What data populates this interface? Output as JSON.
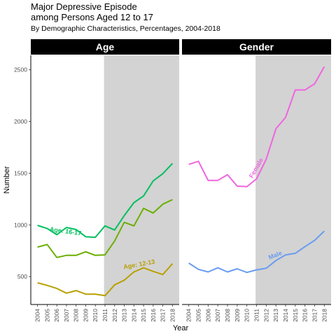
{
  "title_line1": "Major Depressive Episode",
  "title_line2": "among Persons Aged 12 to 17",
  "subtitle": "By Demographic Characteristics, Percentages, 2004-2018",
  "chart_data": {
    "type": "line",
    "x": [
      2004,
      2005,
      2006,
      2007,
      2008,
      2009,
      2010,
      2011,
      2012,
      2013,
      2014,
      2015,
      2016,
      2017,
      2018
    ],
    "xlabel": "Year",
    "ylabel": "Number",
    "ylim": [
      230,
      2640
    ],
    "yticks": [
      500,
      1000,
      1500,
      2000,
      2500
    ],
    "shaded_region": [
      2011,
      2018
    ],
    "grid": false,
    "legend": "none",
    "panels": [
      {
        "facet_label": "Age",
        "series": [
          {
            "name": "Age: 16-17",
            "color": "#00bf5f",
            "label_text": "Age: 16-17",
            "values": [
              995,
              965,
              905,
              975,
              955,
              885,
              880,
              990,
              950,
              1090,
              1215,
              1280,
              1425,
              1495,
              1595
            ]
          },
          {
            "name": "",
            "color": "#6aaf00",
            "label_text": "",
            "values": [
              785,
              810,
              685,
              705,
              705,
              740,
              705,
              710,
              845,
              1025,
              990,
              1160,
              1115,
              1200,
              1245
            ]
          },
          {
            "name": "Age: 12-13",
            "color": "#b8a000",
            "label_text": "Age: 12-13",
            "values": [
              440,
              415,
              385,
              340,
              365,
              330,
              330,
              315,
              420,
              465,
              545,
              585,
              550,
              520,
              625
            ]
          }
        ]
      },
      {
        "facet_label": "Gender",
        "series": [
          {
            "name": "Female",
            "color": "#f065e0",
            "label_text": "Female",
            "values": [
              1585,
              1615,
              1430,
              1430,
              1485,
              1375,
              1370,
              1445,
              1635,
              1930,
              2040,
              2305,
              2305,
              2365,
              2530
            ]
          },
          {
            "name": "Male",
            "color": "#6a9cf0",
            "label_text": "Male",
            "values": [
              630,
              570,
              545,
              585,
              545,
              575,
              540,
              565,
              580,
              655,
              710,
              725,
              790,
              850,
              940
            ]
          }
        ]
      }
    ]
  }
}
